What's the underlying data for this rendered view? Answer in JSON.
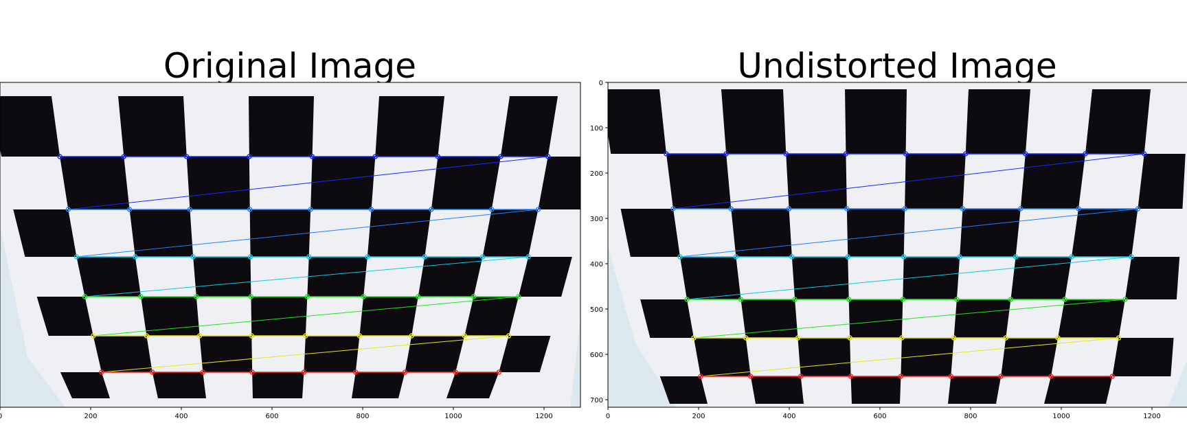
{
  "figure": {
    "panels": [
      {
        "title": "Original Image",
        "x_ticks": [
          "0",
          "200",
          "400",
          "600",
          "800",
          "1000",
          "1200"
        ],
        "y_ticks": []
      },
      {
        "title": "Undistorted Image",
        "x_ticks": [
          "0",
          "200",
          "400",
          "600",
          "800",
          "1000",
          "1200"
        ],
        "y_ticks": [
          "0",
          "100",
          "200",
          "300",
          "400",
          "500",
          "600",
          "700"
        ]
      }
    ]
  },
  "colors": {
    "paper": "#eef0f4",
    "square": "#0d0b10",
    "background": "#dde8ee",
    "row_line_colors": [
      "#1428ff",
      "#1e82ff",
      "#10c8e8",
      "#1ee61e",
      "#e6e61e",
      "#ff1e1e"
    ]
  }
}
